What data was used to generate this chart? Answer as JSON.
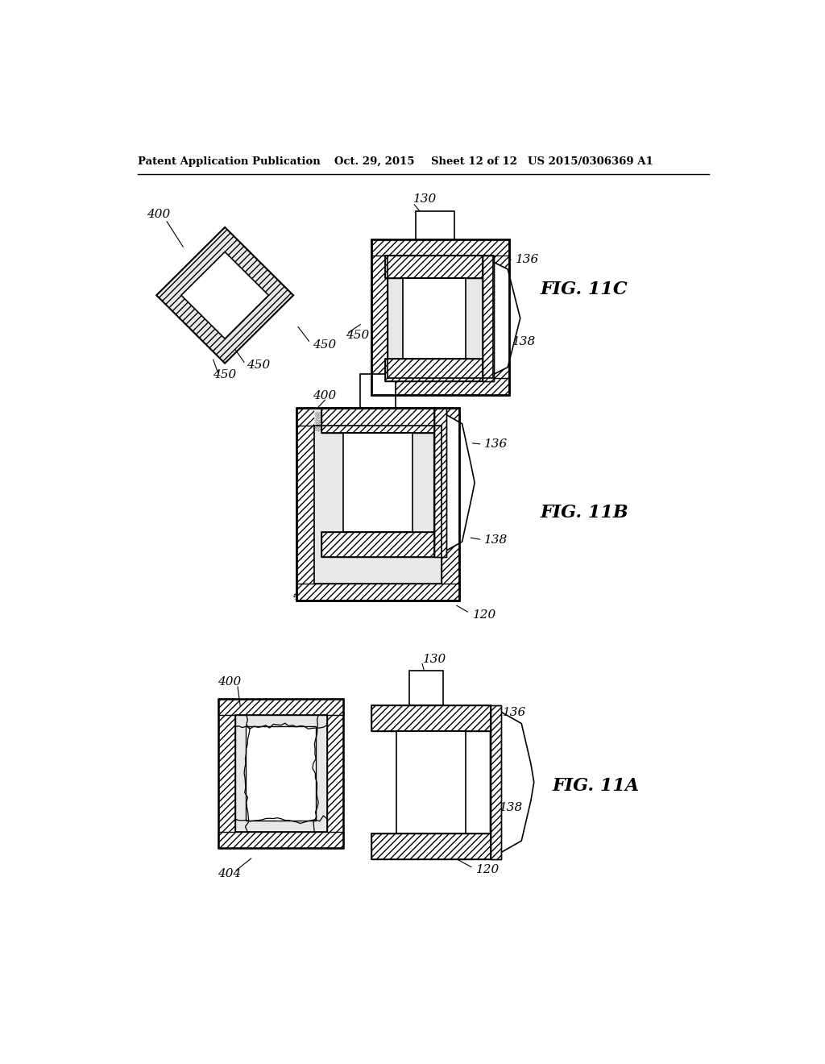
{
  "background_color": "#ffffff",
  "header_left": "Patent Application Publication",
  "header_mid1": "Oct. 29, 2015",
  "header_mid2": "Sheet 12 of 12",
  "header_right": "US 2015/0306369 A1",
  "fig_11a_label": "FIG. 11A",
  "fig_11b_label": "FIG. 11B",
  "fig_11c_label": "FIG. 11C",
  "hatch": "////",
  "foam_color": "#e8e8e8",
  "foam_dot_color": "#d0d0d0"
}
